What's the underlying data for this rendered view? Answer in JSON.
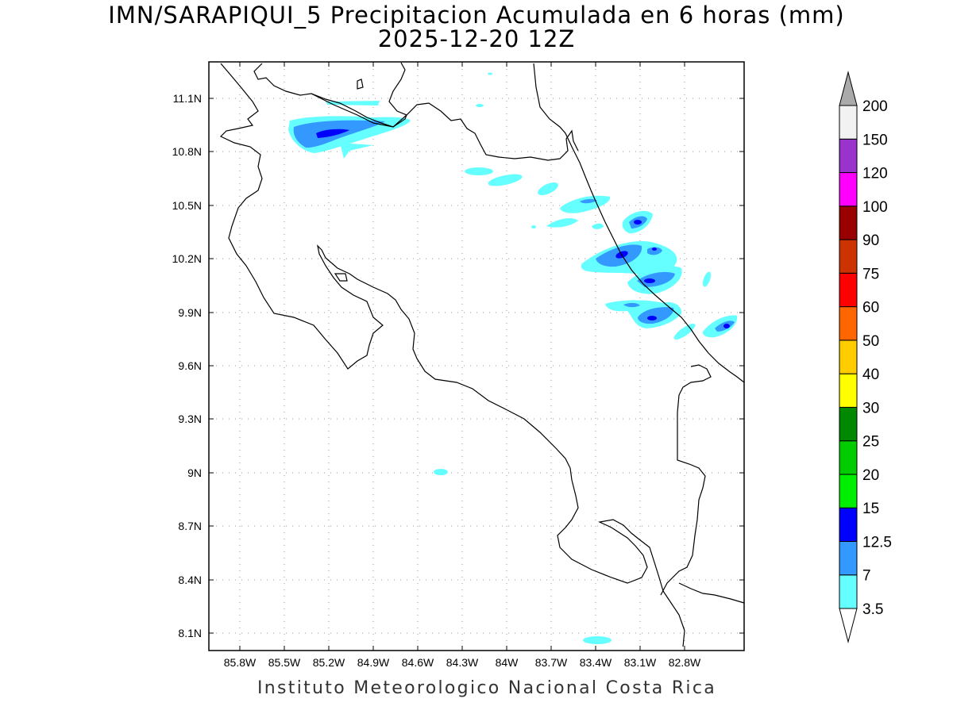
{
  "title": {
    "line1": "IMN/SARAPIQUI_5 Precipitacion Acumulada en 6 horas (mm)",
    "line2": "2025-12-20 12Z"
  },
  "footer": "Instituto Meteorologico Nacional Costa Rica",
  "axes": {
    "lat_labels": [
      "11.1N",
      "10.8N",
      "10.5N",
      "10.2N",
      "9.9N",
      "9.6N",
      "9.3N",
      "9N",
      "8.7N",
      "8.4N",
      "8.1N"
    ],
    "lon_labels": [
      "85.8W",
      "85.5W",
      "85.2W",
      "84.9W",
      "84.6W",
      "84.3W",
      "84W",
      "83.7W",
      "83.4W",
      "83.1W",
      "82.8W"
    ]
  },
  "colorbar": {
    "levels": [
      "3.5",
      "7",
      "12.5",
      "15",
      "20",
      "25",
      "30",
      "40",
      "50",
      "60",
      "75",
      "90",
      "100",
      "120",
      "150",
      "200"
    ],
    "colors": [
      "#66ffff",
      "#3399ff",
      "#0000ff",
      "#00ee00",
      "#00cc00",
      "#008800",
      "#ffff00",
      "#ffcc00",
      "#ff6600",
      "#ff0000",
      "#cc3300",
      "#990000",
      "#ff00ff",
      "#9933cc",
      "#f2f2f2",
      "#aaaaaa"
    ]
  },
  "colors": {
    "light_cyan": "#66ffff",
    "mid_blue": "#3399ff",
    "deep_blue": "#0000ff",
    "coast": "#000000",
    "grid": "#999999"
  }
}
